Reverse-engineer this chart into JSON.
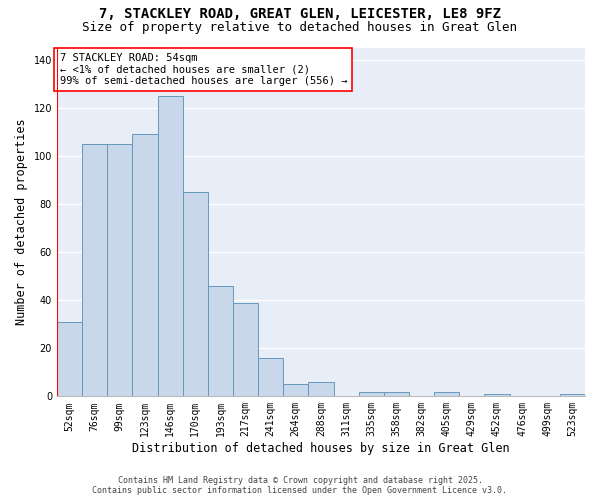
{
  "title": "7, STACKLEY ROAD, GREAT GLEN, LEICESTER, LE8 9FZ",
  "subtitle": "Size of property relative to detached houses in Great Glen",
  "xlabel": "Distribution of detached houses by size in Great Glen",
  "ylabel": "Number of detached properties",
  "categories": [
    "52sqm",
    "76sqm",
    "99sqm",
    "123sqm",
    "146sqm",
    "170sqm",
    "193sqm",
    "217sqm",
    "241sqm",
    "264sqm",
    "288sqm",
    "311sqm",
    "335sqm",
    "358sqm",
    "382sqm",
    "405sqm",
    "429sqm",
    "452sqm",
    "476sqm",
    "499sqm",
    "523sqm"
  ],
  "values": [
    31,
    105,
    105,
    109,
    125,
    85,
    46,
    39,
    16,
    5,
    6,
    0,
    2,
    2,
    0,
    2,
    0,
    1,
    0,
    0,
    1
  ],
  "bar_color": "#c8d8ea",
  "bar_edge_color": "#6699bb",
  "bg_color": "#e8eef8",
  "grid_color": "#ffffff",
  "annotation_line1": "7 STACKLEY ROAD: 54sqm",
  "annotation_line2": "← <1% of detached houses are smaller (2)",
  "annotation_line3": "99% of semi-detached houses are larger (556) →",
  "ylim": [
    0,
    145
  ],
  "yticks": [
    0,
    20,
    40,
    60,
    80,
    100,
    120,
    140
  ],
  "footer_line1": "Contains HM Land Registry data © Crown copyright and database right 2025.",
  "footer_line2": "Contains public sector information licensed under the Open Government Licence v3.0.",
  "title_fontsize": 10,
  "subtitle_fontsize": 9,
  "xlabel_fontsize": 8.5,
  "ylabel_fontsize": 8.5,
  "tick_fontsize": 7,
  "annotation_fontsize": 7.5,
  "footer_fontsize": 6
}
